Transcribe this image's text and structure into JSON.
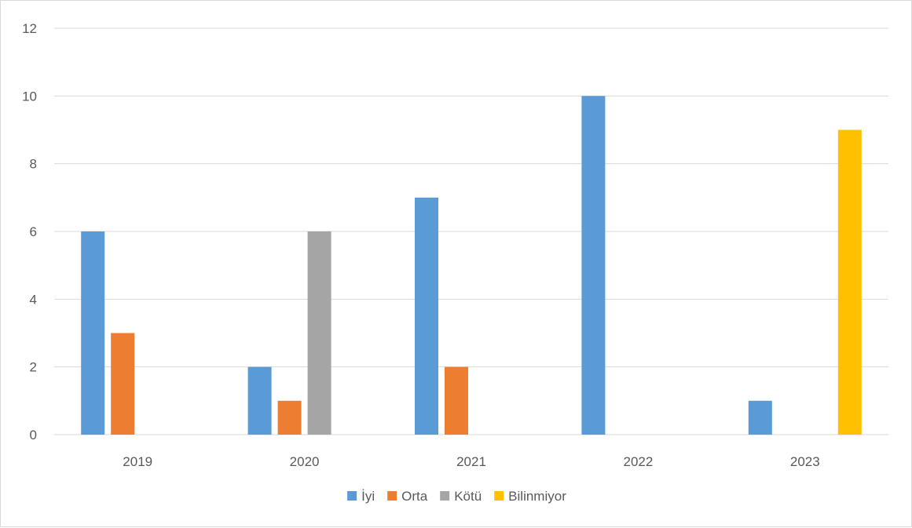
{
  "chart_data": {
    "type": "bar",
    "categories": [
      "2019",
      "2020",
      "2021",
      "2022",
      "2023"
    ],
    "series": [
      {
        "name": "İyi",
        "color": "#5b9bd5",
        "values": [
          6,
          2,
          7,
          10,
          1
        ]
      },
      {
        "name": "Orta",
        "color": "#ed7d31",
        "values": [
          3,
          1,
          2,
          0,
          0
        ]
      },
      {
        "name": "Kötü",
        "color": "#a5a5a5",
        "values": [
          0,
          6,
          0,
          0,
          0
        ]
      },
      {
        "name": "Bilinmiyor",
        "color": "#ffc000",
        "values": [
          0,
          0,
          0,
          0,
          9
        ]
      }
    ],
    "yticks": [
      0,
      2,
      4,
      6,
      8,
      10,
      12
    ],
    "ylim": [
      0,
      12
    ],
    "grid": true,
    "legend_position": "bottom",
    "title": "",
    "xlabel": "",
    "ylabel": ""
  }
}
